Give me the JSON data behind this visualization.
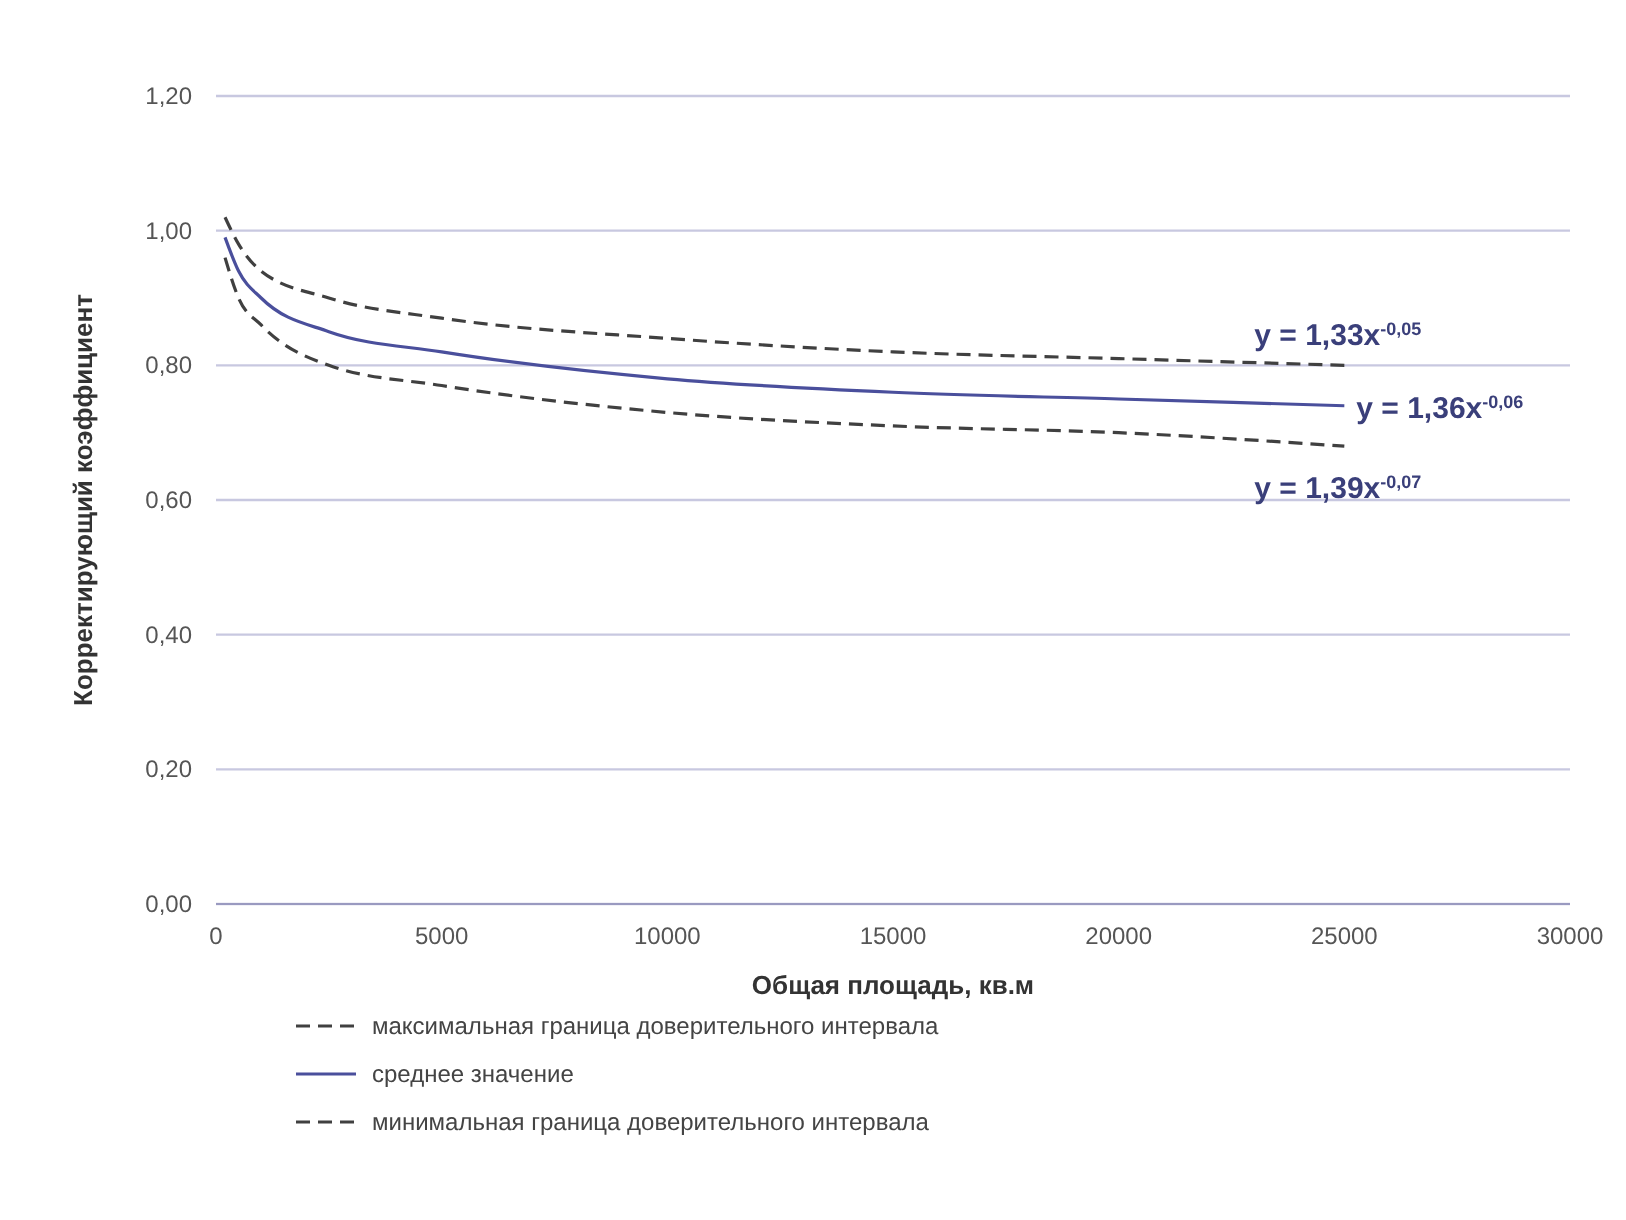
{
  "chart_data": {
    "type": "line",
    "xlabel": "Общая площадь, кв.м",
    "ylabel": "Корректирующий коэффициент",
    "x": [
      200,
      500,
      1000,
      2500,
      5000,
      10000,
      15000,
      20000,
      25000
    ],
    "series": [
      {
        "name": "максимальная граница доверительного интервала",
        "color": "#404040",
        "line_style": "dashed",
        "values": [
          1.02,
          0.98,
          0.94,
          0.9,
          0.87,
          0.84,
          0.82,
          0.81,
          0.8
        ]
      },
      {
        "name": "среднее значение",
        "color": "#4a4f9c",
        "line_style": "solid",
        "values": [
          0.99,
          0.94,
          0.9,
          0.85,
          0.82,
          0.78,
          0.76,
          0.75,
          0.74
        ]
      },
      {
        "name": "минимальная граница доверительного интервала",
        "color": "#404040",
        "line_style": "dashed",
        "values": [
          0.96,
          0.9,
          0.86,
          0.8,
          0.77,
          0.73,
          0.71,
          0.7,
          0.68
        ]
      }
    ],
    "xlim": [
      0,
      30000
    ],
    "xticks": [
      0,
      5000,
      10000,
      15000,
      20000,
      25000,
      30000
    ],
    "ylim": [
      0,
      1.2
    ],
    "yticks": [
      {
        "value": 0,
        "label": "0,00"
      },
      {
        "value": 0.2,
        "label": "0,20"
      },
      {
        "value": 0.4,
        "label": "0,40"
      },
      {
        "value": 0.6,
        "label": "0,60"
      },
      {
        "value": 0.8,
        "label": "0,80"
      },
      {
        "value": 1,
        "label": "1,00"
      },
      {
        "value": 1.2,
        "label": "1,20"
      }
    ],
    "grid": "y",
    "legend": "bottom",
    "marker": "none",
    "annotations": [
      "y = 1,33x$^{-0,05}$",
      "y = 1,36x$^{-0,06}$",
      "y = 1,39x$^{-0,07}$"
    ]
  }
}
